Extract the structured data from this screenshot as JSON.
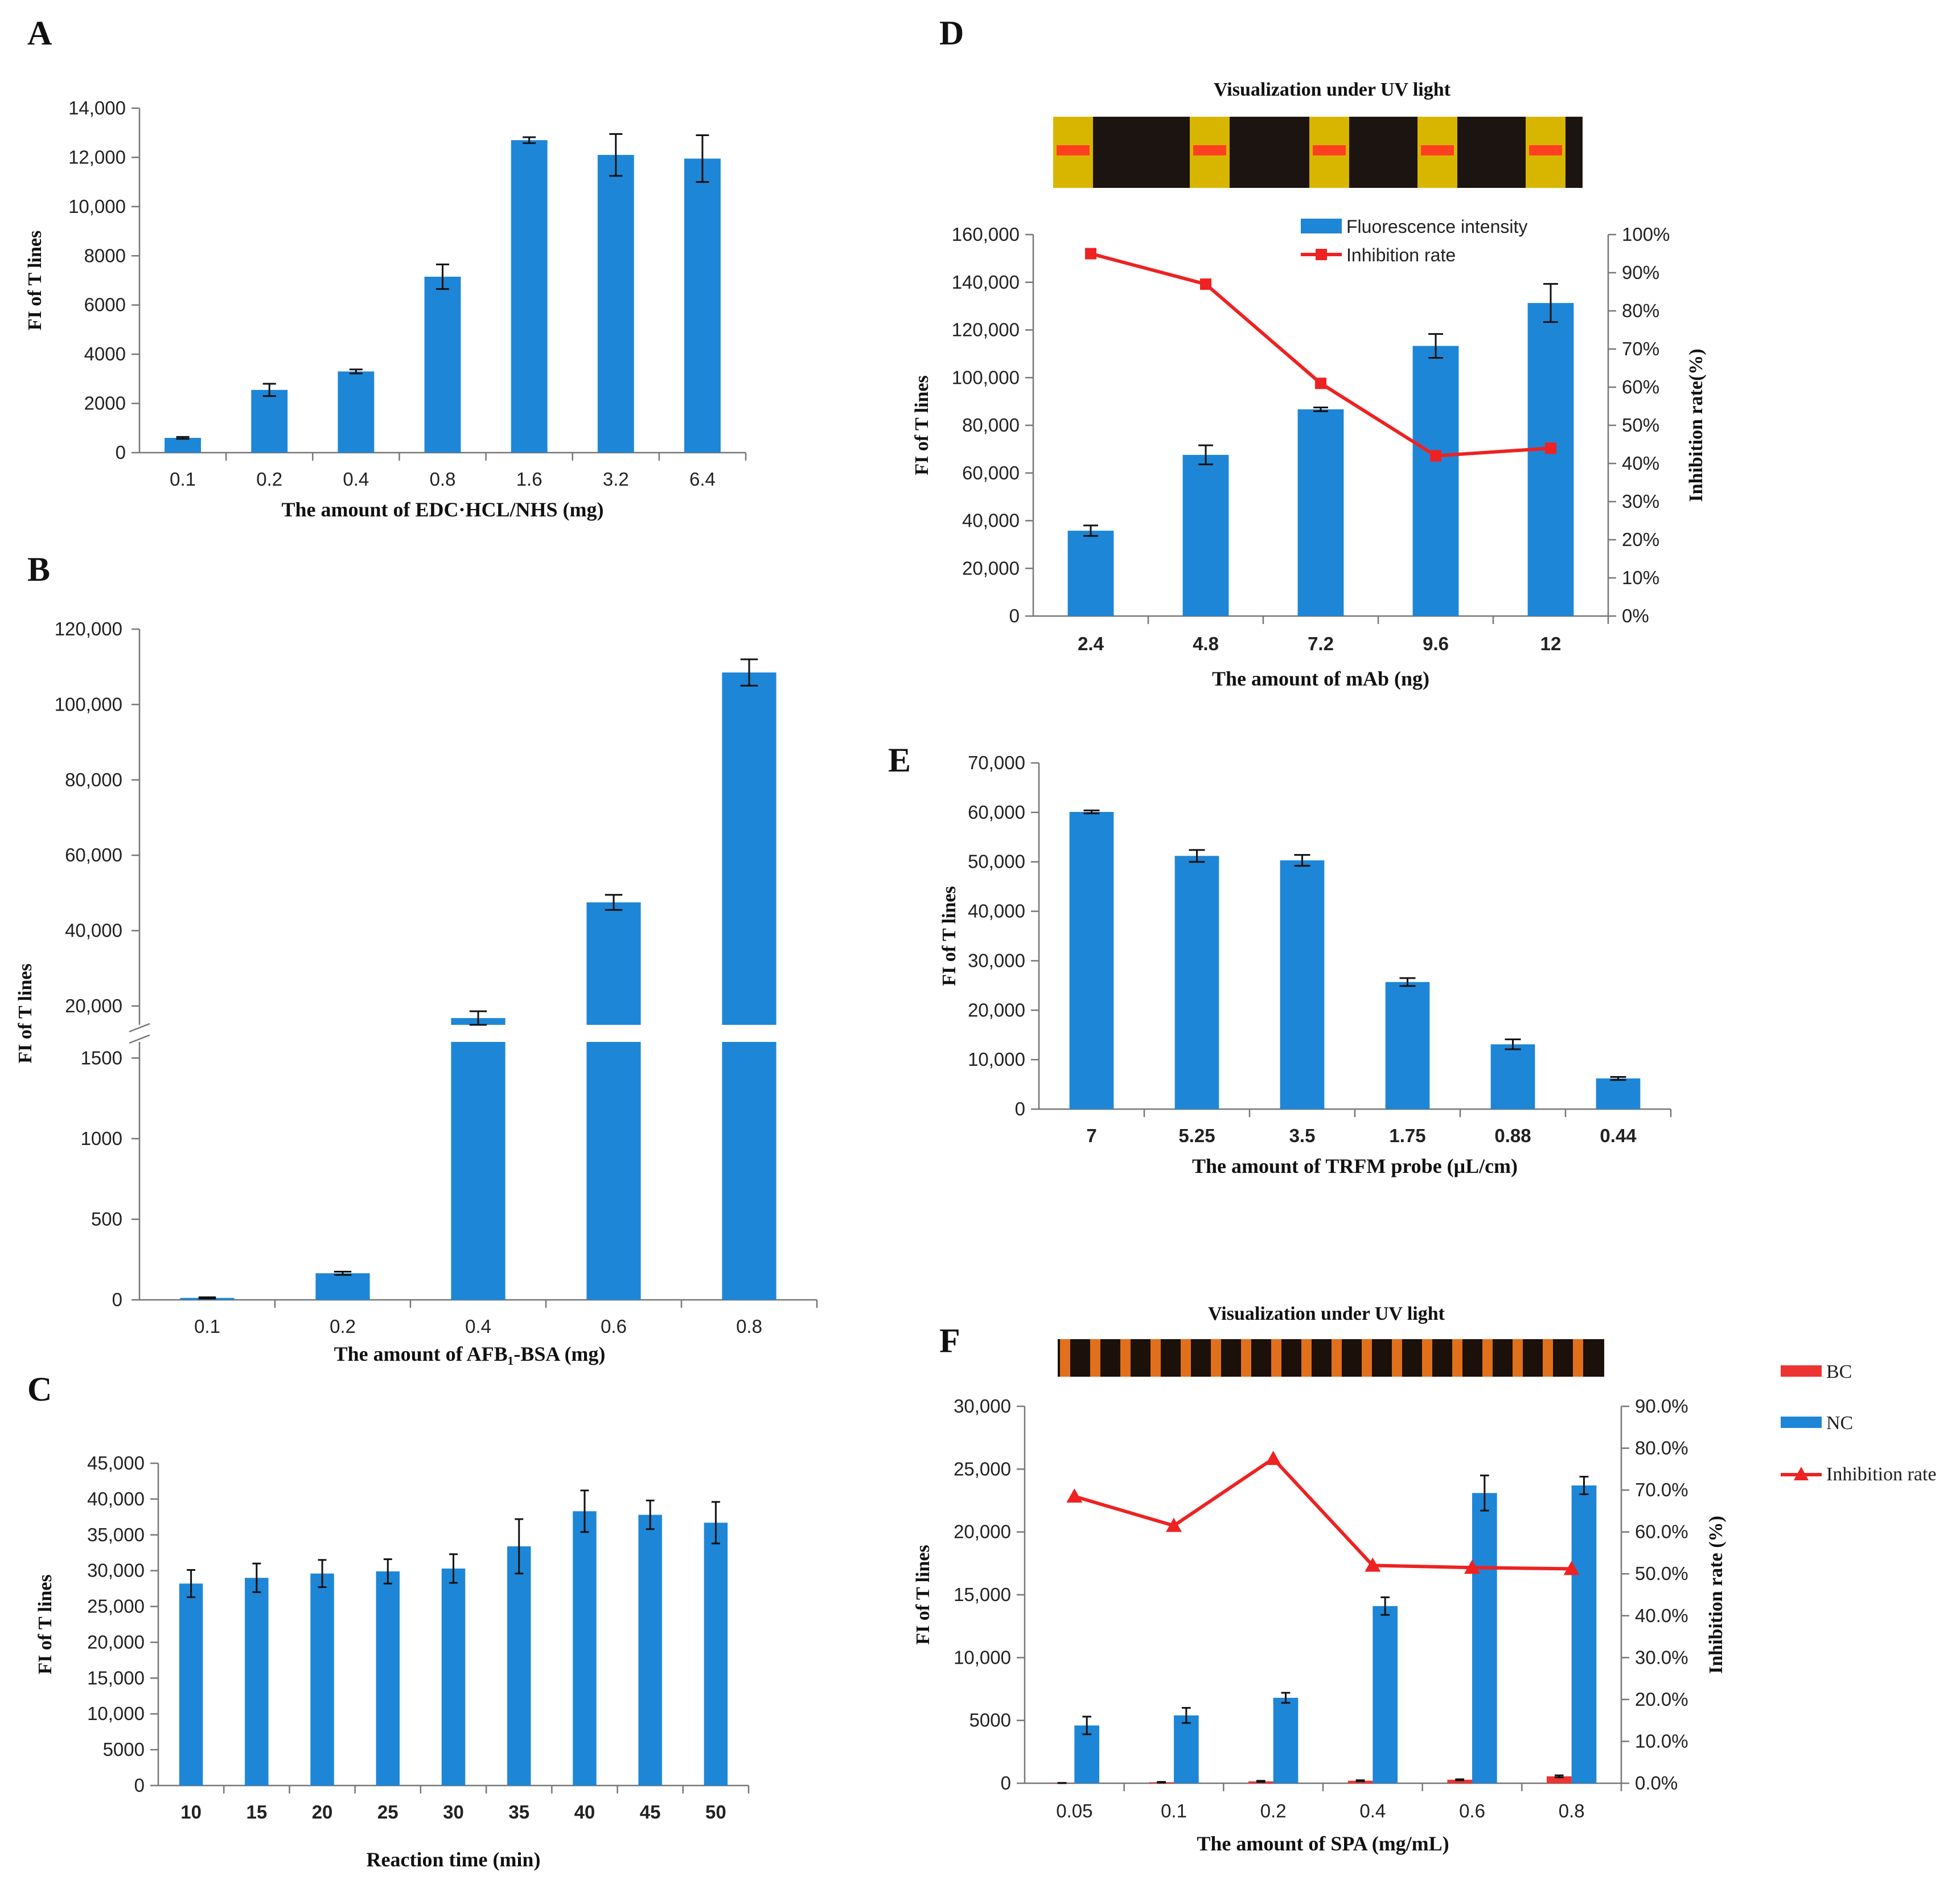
{
  "colors": {
    "bar": "#1e86d6",
    "bar_dark": "#1566a8",
    "line": "#ee2222",
    "bc": "#ee3333"
  },
  "chart_data": [
    {
      "id": "A",
      "type": "bar",
      "panel_label": "A",
      "title": "",
      "categories": [
        "0.1",
        "0.2",
        "0.4",
        "0.8",
        "1.6",
        "3.2",
        "6.4"
      ],
      "values": [
        600,
        2550,
        3300,
        7150,
        12700,
        12100,
        11950
      ],
      "errors": [
        40,
        250,
        80,
        500,
        120,
        850,
        950
      ],
      "xlabel": "The amount of EDC·HCL/NHS (mg)",
      "ylabel": "FI of T lines",
      "ylim": [
        0,
        14000
      ],
      "yticks": [
        "0",
        "2000",
        "4000",
        "6000",
        "8000",
        "10,000",
        "12,000",
        "14,000"
      ]
    },
    {
      "id": "B",
      "type": "bar",
      "panel_label": "B",
      "broken_axis": true,
      "categories": [
        "0.1",
        "0.2",
        "0.4",
        "0.6",
        "0.8"
      ],
      "values": [
        12,
        165,
        16800,
        47500,
        108500
      ],
      "errors": [
        4,
        10,
        1800,
        2000,
        3500
      ],
      "xlabel": "The amount of AFB₁-BSA (mg)",
      "ylabel": "FI of T lines",
      "lower_ylim": [
        0,
        1600
      ],
      "upper_ylim": [
        15000,
        120000
      ],
      "lower_yticks": [
        "0",
        "500",
        "1000",
        "1500"
      ],
      "upper_yticks": [
        "20,000",
        "40,000",
        "60,000",
        "80,000",
        "100,000",
        "120,000"
      ]
    },
    {
      "id": "C",
      "type": "bar",
      "panel_label": "C",
      "categories": [
        "10",
        "15",
        "20",
        "25",
        "30",
        "35",
        "40",
        "45",
        "50"
      ],
      "values": [
        28200,
        29000,
        29600,
        29900,
        30300,
        33400,
        38300,
        37800,
        36700
      ],
      "errors": [
        1900,
        2000,
        1900,
        1700,
        2000,
        3800,
        2900,
        2000,
        2900
      ],
      "xlabel": "Reaction time (min)",
      "ylabel": "FI of T lines",
      "ylim": [
        0,
        45000
      ],
      "yticks": [
        "0",
        "5000",
        "10,000",
        "15,000",
        "20,000",
        "25,000",
        "30,000",
        "35,000",
        "40,000",
        "45,000"
      ]
    },
    {
      "id": "D",
      "type": "bar+line",
      "panel_label": "D",
      "title": "Visualization under UV light",
      "categories": [
        "2.4",
        "4.8",
        "7.2",
        "9.6",
        "12"
      ],
      "series": [
        {
          "name": "Fluorescence intensity",
          "type": "bar",
          "values": [
            35800,
            67600,
            86700,
            113300,
            131300
          ],
          "errors": [
            2200,
            4000,
            800,
            5000,
            8000
          ]
        },
        {
          "name": "Inhibition rate",
          "type": "line",
          "axis": "right",
          "values": [
            95,
            87,
            61,
            42,
            44
          ]
        }
      ],
      "xlabel": "The amount of mAb (ng)",
      "ylabel": "FI of T lines",
      "ylabel_right": "Inhibition rate(%)",
      "ylim": [
        0,
        160000
      ],
      "ylim_right": [
        0,
        100
      ],
      "yticks": [
        "0",
        "20,000",
        "40,000",
        "60,000",
        "80,000",
        "100,000",
        "120,000",
        "140,000",
        "160,000"
      ],
      "yticks_right": [
        "0%",
        "10%",
        "20%",
        "30%",
        "40%",
        "50%",
        "60%",
        "70%",
        "80%",
        "90%",
        "100%"
      ]
    },
    {
      "id": "E",
      "type": "bar",
      "panel_label": "E",
      "categories": [
        "7",
        "5.25",
        "3.5",
        "1.75",
        "0.88",
        "0.44"
      ],
      "values": [
        60100,
        51200,
        50300,
        25700,
        13100,
        6200
      ],
      "errors": [
        300,
        1200,
        1100,
        800,
        1000,
        300
      ],
      "xlabel": "The amount of TRFM probe (μL/cm)",
      "ylabel": "FI of T lines",
      "ylim": [
        0,
        70000
      ],
      "yticks": [
        "0",
        "10,000",
        "20,000",
        "30,000",
        "40,000",
        "50,000",
        "60,000",
        "70,000"
      ]
    },
    {
      "id": "F",
      "type": "bar+line",
      "panel_label": "F",
      "title": "Visualization under UV light",
      "categories": [
        "0.05",
        "0.1",
        "0.2",
        "0.4",
        "0.6",
        "0.8"
      ],
      "series": [
        {
          "name": "BC",
          "type": "bar",
          "values": [
            20,
            80,
            150,
            200,
            280,
            550
          ],
          "errors": [
            10,
            30,
            40,
            40,
            40,
            80
          ]
        },
        {
          "name": "NC",
          "type": "bar",
          "values": [
            4600,
            5400,
            6800,
            14100,
            23100,
            23700
          ],
          "errors": [
            700,
            600,
            400,
            700,
            1400,
            700
          ]
        },
        {
          "name": "Inhibition rate",
          "type": "line",
          "axis": "right",
          "values": [
            68.5,
            61.5,
            77.5,
            52,
            51.5,
            51.2
          ]
        }
      ],
      "xlabel": "The amount of SPA (mg/mL)",
      "ylabel": "FI of T lines",
      "ylabel_right": "Inhibition rate (%)",
      "ylim": [
        0,
        30000
      ],
      "ylim_right": [
        0,
        90
      ],
      "yticks": [
        "0",
        "5000",
        "10,000",
        "15,000",
        "20,000",
        "25,000",
        "30,000"
      ],
      "yticks_right": [
        "0.0%",
        "10.0%",
        "20.0%",
        "30.0%",
        "40.0%",
        "50.0%",
        "60.0%",
        "70.0%",
        "80.0%",
        "90.0%"
      ]
    }
  ]
}
